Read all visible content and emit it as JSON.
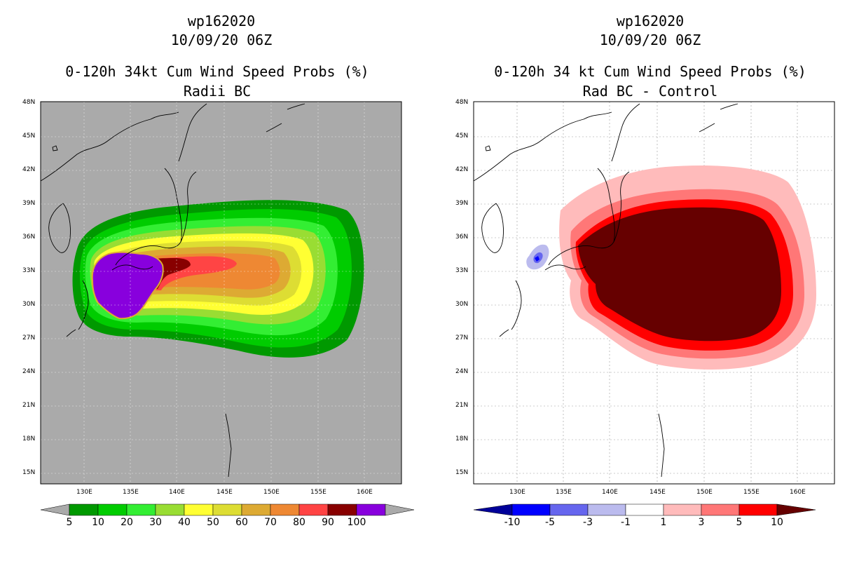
{
  "left_panel": {
    "storm_id": "wp162020",
    "datetime": "10/09/20 06Z",
    "title": "0-120h 34kt Cum Wind Speed Probs (%)",
    "subtitle": "Radii BC",
    "lat_labels": [
      "48N",
      "45N",
      "42N",
      "39N",
      "36N",
      "33N",
      "30N",
      "27N",
      "24N",
      "21N",
      "18N",
      "15N"
    ],
    "lon_labels": [
      "130E",
      "135E",
      "140E",
      "145E",
      "150E",
      "155E",
      "160E"
    ],
    "colorbar": {
      "labels": [
        "5",
        "10",
        "20",
        "30",
        "40",
        "50",
        "60",
        "70",
        "80",
        "90",
        "100"
      ],
      "colors": [
        "#009900",
        "#00cc00",
        "#33ee33",
        "#99dd33",
        "#ffff33",
        "#dddd33",
        "#ddaa33",
        "#ee8833",
        "#ff4444",
        "#880000",
        "#8800dd"
      ],
      "end_color": "#aaaaaa"
    }
  },
  "right_panel": {
    "storm_id": "wp162020",
    "datetime": "10/09/20 06Z",
    "title": "0-120h 34 kt Cum Wind Speed Probs (%)",
    "subtitle": "Rad BC - Control",
    "lat_labels": [
      "48N",
      "45N",
      "42N",
      "39N",
      "36N",
      "33N",
      "30N",
      "27N",
      "24N",
      "21N",
      "18N",
      "15N"
    ],
    "lon_labels": [
      "130E",
      "135E",
      "140E",
      "145E",
      "150E",
      "155E",
      "160E"
    ],
    "colorbar": {
      "labels": [
        "-10",
        "-5",
        "-3",
        "-1",
        "1",
        "3",
        "5",
        "10"
      ],
      "colors": [
        "#0000ff",
        "#6666ee",
        "#bbbbee",
        "#ffffff",
        "#ffbbbb",
        "#ff7777",
        "#ff0000"
      ],
      "low_end_color": "#000099",
      "high_end_color": "#660000"
    }
  }
}
